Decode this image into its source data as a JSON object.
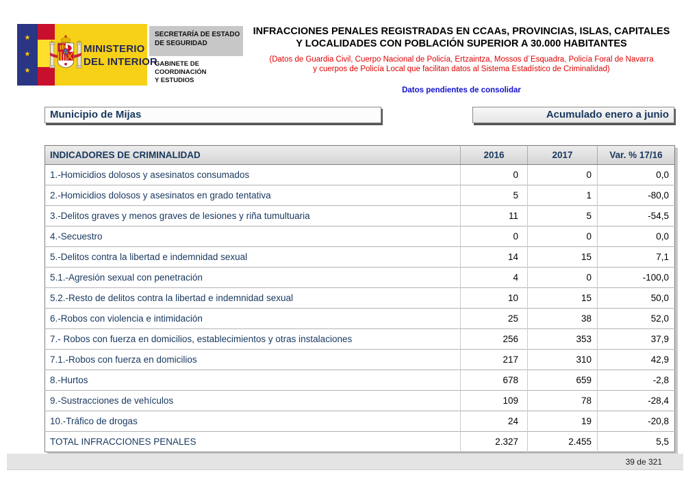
{
  "header": {
    "ministry_line1": "MINISTERIO",
    "ministry_line2": "DEL INTERIOR",
    "secretaria_line1": "SECRETARÍA DE ESTADO",
    "secretaria_line2": "DE SEGURIDAD",
    "gabinete_line1": "GABINETE DE COORDINACIÓN",
    "gabinete_line2": "Y ESTUDIOS",
    "title_line1": "INFRACCIONES PENALES REGISTRADAS EN CCAAs, PROVINCIAS, ISLAS, CAPITALES",
    "title_line2": "Y LOCALIDADES CON POBLACIÓN SUPERIOR A 30.000 HABITANTES",
    "subtitle_line1": "(Datos de Guardia Civil, Cuerpo Nacional de Policía, Ertzaintza, Mossos d´Esquadra, Policía Foral de Navarra",
    "subtitle_line2": "y cuerpos de Policía Local que facilitan datos al Sistema Estadístico de Criminalidad)",
    "status_note": "Datos pendientes de consolidar"
  },
  "filters": {
    "municipality": "Municipio de Mijas",
    "period": "Acumulado enero a junio"
  },
  "table": {
    "headers": [
      "INDICADORES DE CRIMINALIDAD",
      "2016",
      "2017",
      "Var. % 17/16"
    ],
    "rows": [
      {
        "label": "1.-Homicidios dolosos y asesinatos consumados",
        "y2016": "0",
        "y2017": "0",
        "variation": "0,0"
      },
      {
        "label": "2.-Homicidios dolosos y asesinatos en grado tentativa",
        "y2016": "5",
        "y2017": "1",
        "variation": "-80,0"
      },
      {
        "label": "3.-Delitos graves y menos graves de lesiones y riña tumultuaria",
        "y2016": "11",
        "y2017": "5",
        "variation": "-54,5"
      },
      {
        "label": "4.-Secuestro",
        "y2016": "0",
        "y2017": "0",
        "variation": "0,0"
      },
      {
        "label": "5.-Delitos contra la libertad e indemnidad sexual",
        "y2016": "14",
        "y2017": "15",
        "variation": "7,1"
      },
      {
        "label": "5.1.-Agresión sexual con penetración",
        "y2016": "4",
        "y2017": "0",
        "variation": "-100,0"
      },
      {
        "label": "5.2.-Resto de delitos contra la libertad e indemnidad sexual",
        "y2016": "10",
        "y2017": "15",
        "variation": "50,0"
      },
      {
        "label": "6.-Robos con violencia e intimidación",
        "y2016": "25",
        "y2017": "38",
        "variation": "52,0"
      },
      {
        "label": "7.- Robos con fuerza en domicilios, establecimientos y otras instalaciones",
        "y2016": "256",
        "y2017": "353",
        "variation": "37,9"
      },
      {
        "label": "7.1.-Robos con fuerza en domicilios",
        "y2016": "217",
        "y2017": "310",
        "variation": "42,9"
      },
      {
        "label": "8.-Hurtos",
        "y2016": "678",
        "y2017": "659",
        "variation": "-2,8"
      },
      {
        "label": "9.-Sustracciones de vehículos",
        "y2016": "109",
        "y2017": "78",
        "variation": "-28,4"
      },
      {
        "label": "10.-Tráfico de drogas",
        "y2016": "24",
        "y2017": "19",
        "variation": "-20,8"
      }
    ],
    "total": {
      "label": "TOTAL INFRACCIONES PENALES",
      "y2016": "2.327",
      "y2017": "2.455",
      "variation": "5,5"
    }
  },
  "footer": {
    "page_indicator": "39 de 321"
  },
  "colors": {
    "accent_navy": "#17375E",
    "alert_red": "#E00000",
    "note_blue": "#1010CC",
    "flag_yellow": "#F7D117",
    "flag_red": "#C8102E",
    "eu_blue": "#2A3583"
  }
}
